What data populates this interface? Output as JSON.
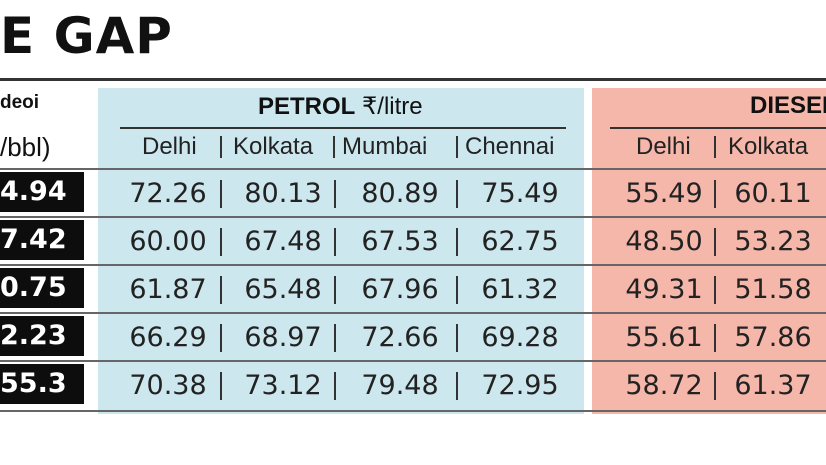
{
  "title": "E GAP",
  "crude": {
    "header_line1": "deoi",
    "header_line2": "/bbl)",
    "values": [
      "4.94",
      "7.42",
      "0.75",
      "2.23",
      "55.3"
    ]
  },
  "petrol": {
    "label": "PETROL",
    "unit": "₹/litre",
    "cities": [
      "Delhi",
      "Kolkata",
      "Mumbai",
      "Chennai"
    ],
    "rows": [
      [
        "72.26",
        "80.13",
        "80.89",
        "75.49"
      ],
      [
        "60.00",
        "67.48",
        "67.53",
        "62.75"
      ],
      [
        "61.87",
        "65.48",
        "67.96",
        "61.32"
      ],
      [
        "66.29",
        "68.97",
        "72.66",
        "69.28"
      ],
      [
        "70.38",
        "73.12",
        "79.48",
        "72.95"
      ]
    ]
  },
  "diesel": {
    "label": "DIESEL",
    "cities": [
      "Delhi",
      "Kolkata"
    ],
    "rows": [
      [
        "55.49",
        "60.11"
      ],
      [
        "48.50",
        "53.23"
      ],
      [
        "49.31",
        "51.58"
      ],
      [
        "55.61",
        "57.86"
      ],
      [
        "58.72",
        "61.37"
      ]
    ]
  },
  "colors": {
    "petrol_bg": "#cde7ef",
    "diesel_bg": "#f6b7ab",
    "crude_bg": "#0d0d0d"
  }
}
